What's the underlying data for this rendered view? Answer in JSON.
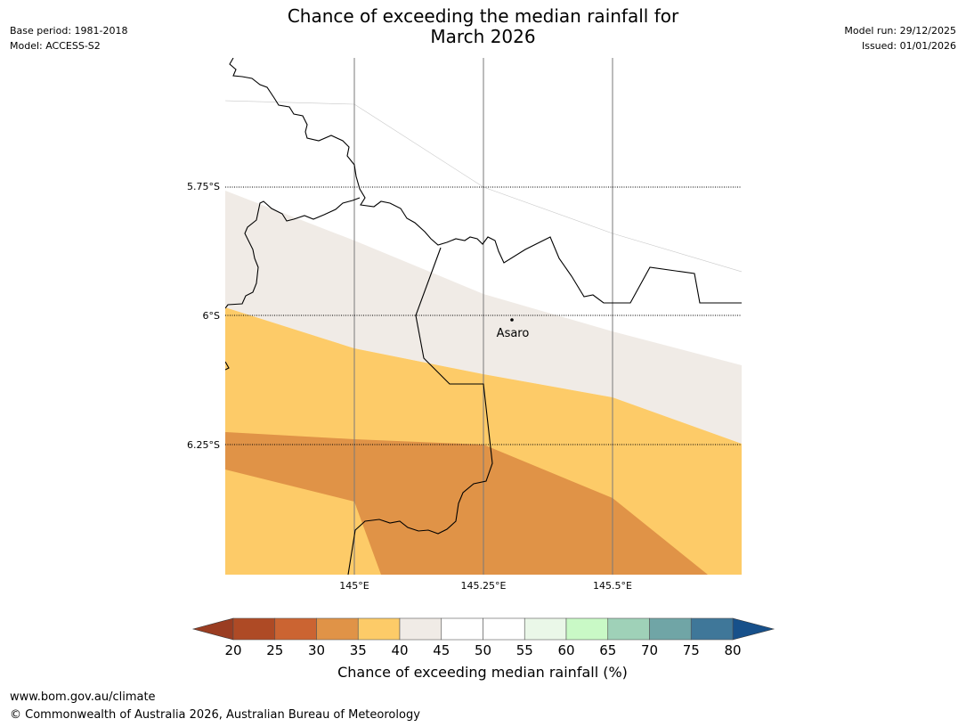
{
  "title": {
    "line1": "Chance of exceeding the median rainfall for",
    "line2": "March 2026"
  },
  "meta_left": {
    "base_period": "Base period: 1981-2018",
    "model": "Model: ACCESS-S2"
  },
  "meta_right": {
    "model_run": "Model run: 29/12/2025",
    "issued": "Issued: 01/01/2026"
  },
  "map": {
    "lat_labels": [
      "5.75°S",
      "6°S",
      "6.25°S"
    ],
    "lon_labels": [
      "145°E",
      "145.25°E",
      "145.5°E"
    ],
    "places": [
      {
        "name": "Asaro"
      }
    ]
  },
  "colorbar": {
    "title": "Chance of exceeding median rainfall (%)",
    "ticks": [
      "20",
      "25",
      "30",
      "35",
      "40",
      "45",
      "50",
      "55",
      "60",
      "65",
      "70",
      "75",
      "80"
    ],
    "colors": [
      "#ae4a25",
      "#cb6432",
      "#e09347",
      "#fdcb68",
      "#f0ebe6",
      "#ffffff",
      "#ffffff",
      "#eaf7e8",
      "#c9f9c6",
      "#9fd1b8",
      "#70a5a6",
      "#3f7799"
    ],
    "under_color": "#9a3d22",
    "over_color": "#17508a"
  },
  "footer": {
    "url": "www.bom.gov.au/climate",
    "copyright": "© Commonwealth of Australia 2026, Australian Bureau of Meteorology"
  }
}
